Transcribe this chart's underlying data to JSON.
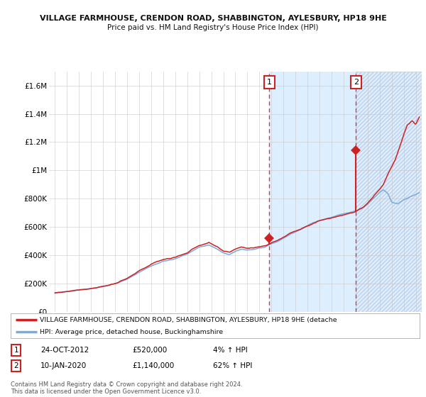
{
  "title1": "VILLAGE FARMHOUSE, CRENDON ROAD, SHABBINGTON, AYLESBURY, HP18 9HE",
  "title2": "Price paid vs. HM Land Registry's House Price Index (HPI)",
  "xlim": [
    1994.5,
    2025.5
  ],
  "ylim": [
    0,
    1700000
  ],
  "yticks": [
    0,
    200000,
    400000,
    600000,
    800000,
    1000000,
    1200000,
    1400000,
    1600000
  ],
  "ytick_labels": [
    "£0",
    "£200K",
    "£400K",
    "£600K",
    "£800K",
    "£1M",
    "£1.2M",
    "£1.4M",
    "£1.6M"
  ],
  "xticks": [
    1995,
    1996,
    1997,
    1998,
    1999,
    2000,
    2001,
    2002,
    2003,
    2004,
    2005,
    2006,
    2007,
    2008,
    2009,
    2010,
    2011,
    2012,
    2013,
    2014,
    2015,
    2016,
    2017,
    2018,
    2019,
    2020,
    2021,
    2022,
    2023,
    2024,
    2025
  ],
  "hpi_color": "#7aabdc",
  "price_color": "#cc2222",
  "background_color": "#ffffff",
  "shade_color": "#ddeeff",
  "grid_color": "#c8c8c8",
  "sale1_x": 2012.82,
  "sale1_y": 520000,
  "sale2_x": 2020.03,
  "sale2_y": 1140000,
  "legend_label1": "VILLAGE FARMHOUSE, CRENDON ROAD, SHABBINGTON, AYLESBURY, HP18 9HE (detache",
  "legend_label2": "HPI: Average price, detached house, Buckinghamshire",
  "footnote": "Contains HM Land Registry data © Crown copyright and database right 2024.\nThis data is licensed under the Open Government Licence v3.0.",
  "table_row1": [
    "1",
    "24-OCT-2012",
    "£520,000",
    "4% ↑ HPI"
  ],
  "table_row2": [
    "2",
    "10-JAN-2020",
    "£1,140,000",
    "62% ↑ HPI"
  ]
}
